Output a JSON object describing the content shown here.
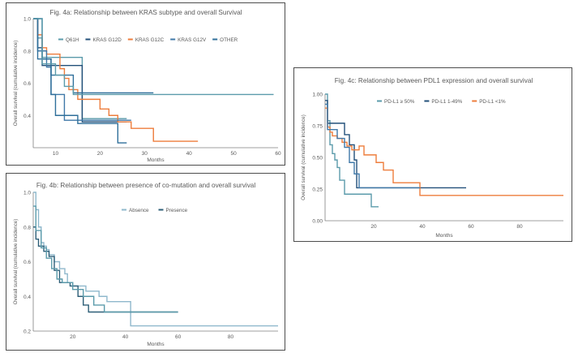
{
  "colors": {
    "teal": "#5b9bab",
    "navy": "#23507a",
    "orange": "#ee7d3c",
    "blue": "#3f78a8",
    "steel": "#2f6f9a",
    "light_blue": "#8fb8cc",
    "dark_teal": "#2e5f78",
    "axis": "#7f7f7f",
    "text": "#595959"
  },
  "chart_data": [
    {
      "id": "fig4a",
      "type": "line",
      "title": "Fig. 4a: Relationship between KRAS subtype and overall Survival",
      "xlabel": "Months",
      "ylabel": "Overall survival (cumulative incidence)",
      "xlim": [
        5,
        60
      ],
      "ylim": [
        0.2,
        1.0
      ],
      "xticks": [
        10,
        20,
        30,
        40,
        50,
        60
      ],
      "yticks": [
        0.2,
        0.4,
        0.6,
        0.8,
        1.0
      ],
      "ytick_labels": [
        "",
        "0.4",
        "0.6",
        "0.8",
        "1.0"
      ],
      "legend_position": "top",
      "series": [
        {
          "name": "Q61H",
          "color": "#5b9bab",
          "x": [
            5,
            6,
            7,
            8,
            15,
            16,
            26
          ],
          "y": [
            1.0,
            0.88,
            0.76,
            0.76,
            0.76,
            0.38,
            0.38
          ]
        },
        {
          "name": "KRAS G12D",
          "color": "#23507a",
          "x": [
            5,
            6,
            7,
            15,
            16,
            26
          ],
          "y": [
            1.0,
            0.82,
            0.71,
            0.71,
            0.36,
            0.36
          ]
        },
        {
          "name": "KRAS G12C",
          "color": "#ee7d3c",
          "x": [
            5,
            6,
            7,
            8,
            11,
            12,
            13,
            15,
            20,
            22,
            24,
            27,
            32,
            42
          ],
          "y": [
            1.0,
            0.9,
            0.82,
            0.78,
            0.69,
            0.63,
            0.56,
            0.5,
            0.44,
            0.4,
            0.36,
            0.32,
            0.24,
            0.24
          ]
        },
        {
          "name": "KRAS G12V",
          "color": "#3f78a8",
          "x": [
            5,
            6,
            8,
            9,
            11,
            12,
            14,
            27
          ],
          "y": [
            1.0,
            0.8,
            0.7,
            0.53,
            0.53,
            0.37,
            0.37,
            0.37
          ]
        },
        {
          "name": "OTHER",
          "color": "#2f6f9a",
          "x": [
            5,
            6,
            9,
            10,
            13,
            15,
            24,
            26
          ],
          "y": [
            1.0,
            0.75,
            0.53,
            0.4,
            0.4,
            0.35,
            0.23,
            0.23
          ]
        },
        {
          "name": "",
          "color": "#2f6f9a",
          "x": [
            5,
            7,
            9,
            12,
            14,
            32
          ],
          "y": [
            1.0,
            0.75,
            0.65,
            0.65,
            0.54,
            0.54
          ]
        },
        {
          "name": "",
          "color": "#5b9bab",
          "x": [
            5,
            7,
            10,
            12,
            14,
            59
          ],
          "y": [
            1.0,
            0.72,
            0.65,
            0.58,
            0.53,
            0.53
          ]
        }
      ]
    },
    {
      "id": "fig4b",
      "type": "line",
      "title": "Fig. 4b: Relationship between presence of co-mutation and overall survival",
      "xlabel": "Months",
      "ylabel": "Overall survival (cumulative incidence)",
      "xlim": [
        5,
        98
      ],
      "ylim": [
        0.2,
        1.0
      ],
      "xticks": [
        20,
        40,
        60,
        80
      ],
      "yticks": [
        0.2,
        0.4,
        0.6,
        0.8,
        1.0
      ],
      "ytick_labels": [
        "0.2",
        "0.4",
        "0.6",
        "0.8",
        "1.0"
      ],
      "legend_position": "top",
      "series": [
        {
          "name": "Absence",
          "color": "#8fb8cc",
          "x": [
            5,
            6,
            7,
            8,
            9,
            10,
            11,
            13,
            15,
            17,
            18,
            20,
            25,
            30,
            33,
            42,
            98
          ],
          "y": [
            1.0,
            0.9,
            0.8,
            0.71,
            0.69,
            0.67,
            0.64,
            0.6,
            0.56,
            0.53,
            0.48,
            0.46,
            0.43,
            0.4,
            0.37,
            0.23,
            0.23
          ]
        },
        {
          "name": "Presence",
          "color": "#2e5f78",
          "x": [
            5,
            6,
            7,
            9,
            11,
            13,
            15,
            17,
            19,
            22,
            24,
            26,
            30,
            42,
            60
          ],
          "y": [
            0.8,
            0.73,
            0.69,
            0.66,
            0.63,
            0.55,
            0.48,
            0.48,
            0.46,
            0.4,
            0.35,
            0.31,
            0.31,
            0.31,
            0.31
          ]
        },
        {
          "name": "",
          "color": "#5b9bab",
          "x": [
            5,
            6,
            8,
            10,
            12,
            14,
            16,
            20,
            24,
            28,
            32,
            60
          ],
          "y": [
            0.92,
            0.78,
            0.68,
            0.62,
            0.56,
            0.5,
            0.48,
            0.44,
            0.4,
            0.35,
            0.31,
            0.31
          ]
        }
      ]
    },
    {
      "id": "fig4c",
      "type": "line",
      "title": "Fig. 4c: Relationship between PDL1 expression and overall survival",
      "xlabel": "Months",
      "ylabel": "Overall survival (cumulative incidence)",
      "xlim": [
        0,
        98
      ],
      "ylim": [
        0.0,
        1.0
      ],
      "xticks": [
        20,
        40,
        60,
        80
      ],
      "yticks": [
        0.0,
        0.25,
        0.5,
        0.75,
        1.0
      ],
      "ytick_labels": [
        "0.00",
        "0.25",
        "0.50",
        "0.75",
        "1.00"
      ],
      "legend_position": "top",
      "series": [
        {
          "name": "PD-L1 ≥ 50%",
          "color": "#5b9bab",
          "x": [
            0,
            1,
            2,
            3,
            4,
            5,
            6,
            8,
            12,
            19,
            22
          ],
          "y": [
            1.0,
            0.79,
            0.6,
            0.53,
            0.48,
            0.42,
            0.32,
            0.21,
            0.21,
            0.11,
            0.11
          ]
        },
        {
          "name": "PD-L1 1-49%",
          "color": "#23507a",
          "x": [
            0,
            1,
            6,
            8,
            10,
            12,
            13,
            58
          ],
          "y": [
            0.95,
            0.77,
            0.77,
            0.68,
            0.6,
            0.48,
            0.26,
            0.26
          ]
        },
        {
          "name": "PD-L1 <1%",
          "color": "#ee7d3c",
          "x": [
            0,
            1,
            2,
            3,
            5,
            7,
            9,
            11,
            14,
            16,
            19,
            21,
            24,
            28,
            39,
            98
          ],
          "y": [
            0.89,
            0.74,
            0.7,
            0.67,
            0.65,
            0.62,
            0.59,
            0.56,
            0.59,
            0.52,
            0.52,
            0.46,
            0.4,
            0.3,
            0.2,
            0.2
          ]
        },
        {
          "name": "",
          "color": "#3f78a8",
          "x": [
            0,
            1,
            5,
            8,
            10,
            12,
            14,
            39
          ],
          "y": [
            0.92,
            0.72,
            0.65,
            0.58,
            0.46,
            0.37,
            0.26,
            0.26
          ]
        }
      ]
    }
  ]
}
